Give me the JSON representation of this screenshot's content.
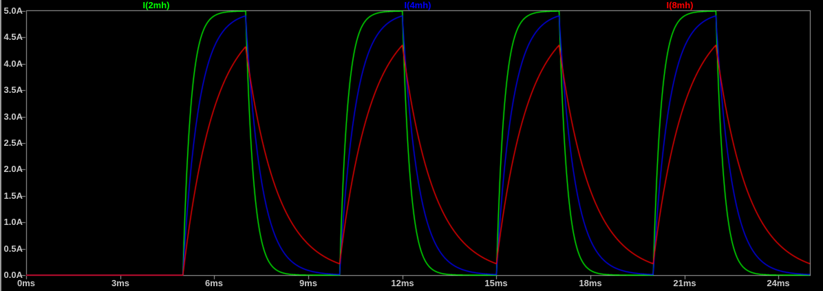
{
  "window": {
    "background_color": "#000000",
    "frame_color": "#9c9c9c",
    "axis_color": "#a9a9a9",
    "tick_text_color": "#c8c8c8"
  },
  "chart_data": {
    "type": "line",
    "title": "",
    "description": "Transient simulation of inductor currents for a repeated voltage pulse: three RL charge/discharge exponential waveforms",
    "x_axis": {
      "unit": "ms",
      "range": [
        0,
        25
      ],
      "tick_step": 3,
      "tick_labels": [
        "0ms",
        "3ms",
        "6ms",
        "9ms",
        "12ms",
        "15ms",
        "18ms",
        "21ms",
        "24ms"
      ],
      "grid": false
    },
    "y_axis": {
      "unit": "A",
      "range": [
        0,
        5
      ],
      "tick_step": 0.5,
      "tick_labels": [
        "0.0A",
        "0.5A",
        "1.0A",
        "1.5A",
        "2.0A",
        "2.5A",
        "3.0A",
        "3.5A",
        "4.0A",
        "4.5A",
        "5.0A"
      ],
      "grid": false
    },
    "excitation": {
      "type": "pulse",
      "amplitude_A": 5,
      "delay_ms": 5,
      "on_ms": 2,
      "period_ms": 5,
      "t_end_ms": 25,
      "pulse_on_times_ms": [
        5,
        10,
        15,
        20
      ],
      "pulse_off_times_ms": [
        7,
        12,
        17,
        22
      ]
    },
    "series": [
      {
        "name": "I(2mh)",
        "color": "#00ff00",
        "inductance": "2mH",
        "tau_ms": 0.25,
        "peak_A": 5.0,
        "min_A": 0.0
      },
      {
        "name": "I(4mh)",
        "color": "#0000ff",
        "inductance": "4mH",
        "tau_ms": 0.5,
        "peak_A": 4.91,
        "min_A": 0.01
      },
      {
        "name": "I(8mh)",
        "color": "#ff0000",
        "inductance": "8mH",
        "tau_ms": 1.0,
        "peak_A": 4.35,
        "min_A": 0.22
      }
    ],
    "legend_position": "top"
  }
}
